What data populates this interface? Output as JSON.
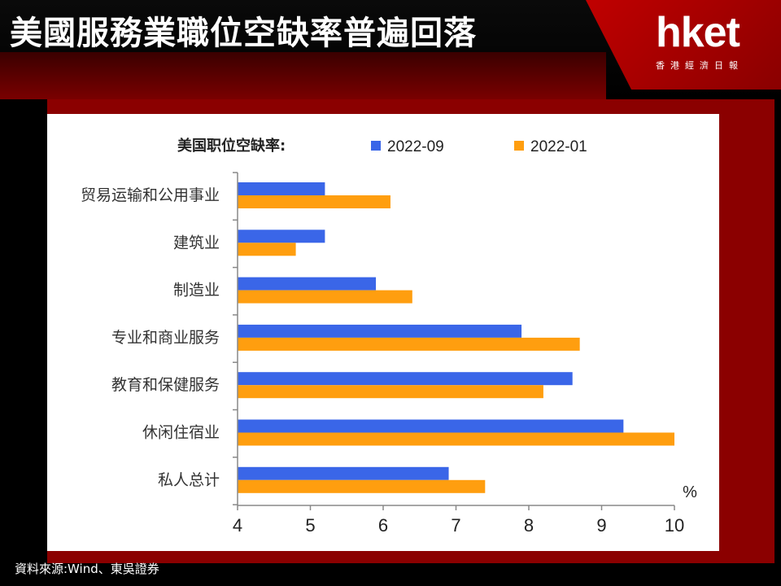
{
  "header": {
    "title": "美國服務業職位空缺率普遍回落",
    "logo_text": "hket",
    "logo_sub": "香港經濟日報"
  },
  "source": "資料來源:Wind、東吳證券",
  "colors": {
    "series_2022_09": "#3a66e8",
    "series_2022_01": "#ff9e0f",
    "header_red": "#c00000",
    "frame_red": "#8b0000"
  },
  "chart_data": {
    "type": "bar",
    "orientation": "horizontal",
    "legend_title": "美国职位空缺率:",
    "legend_placement": "top",
    "categories": [
      "贸易运输和公用事业",
      "建筑业",
      "制造业",
      "专业和商业服务",
      "教育和保健服务",
      "休闲住宿业",
      "私人总计"
    ],
    "series": [
      {
        "name": "2022-09",
        "values": [
          5.2,
          5.2,
          5.9,
          7.9,
          8.6,
          9.3,
          6.9
        ]
      },
      {
        "name": "2022-01",
        "values": [
          6.1,
          4.8,
          6.4,
          8.7,
          8.2,
          10.0,
          7.4
        ]
      }
    ],
    "xlim": [
      4,
      10
    ],
    "xticks": [
      "4",
      "5",
      "6",
      "7",
      "8",
      "9",
      "10"
    ],
    "unit_label": "%",
    "grid": false
  }
}
